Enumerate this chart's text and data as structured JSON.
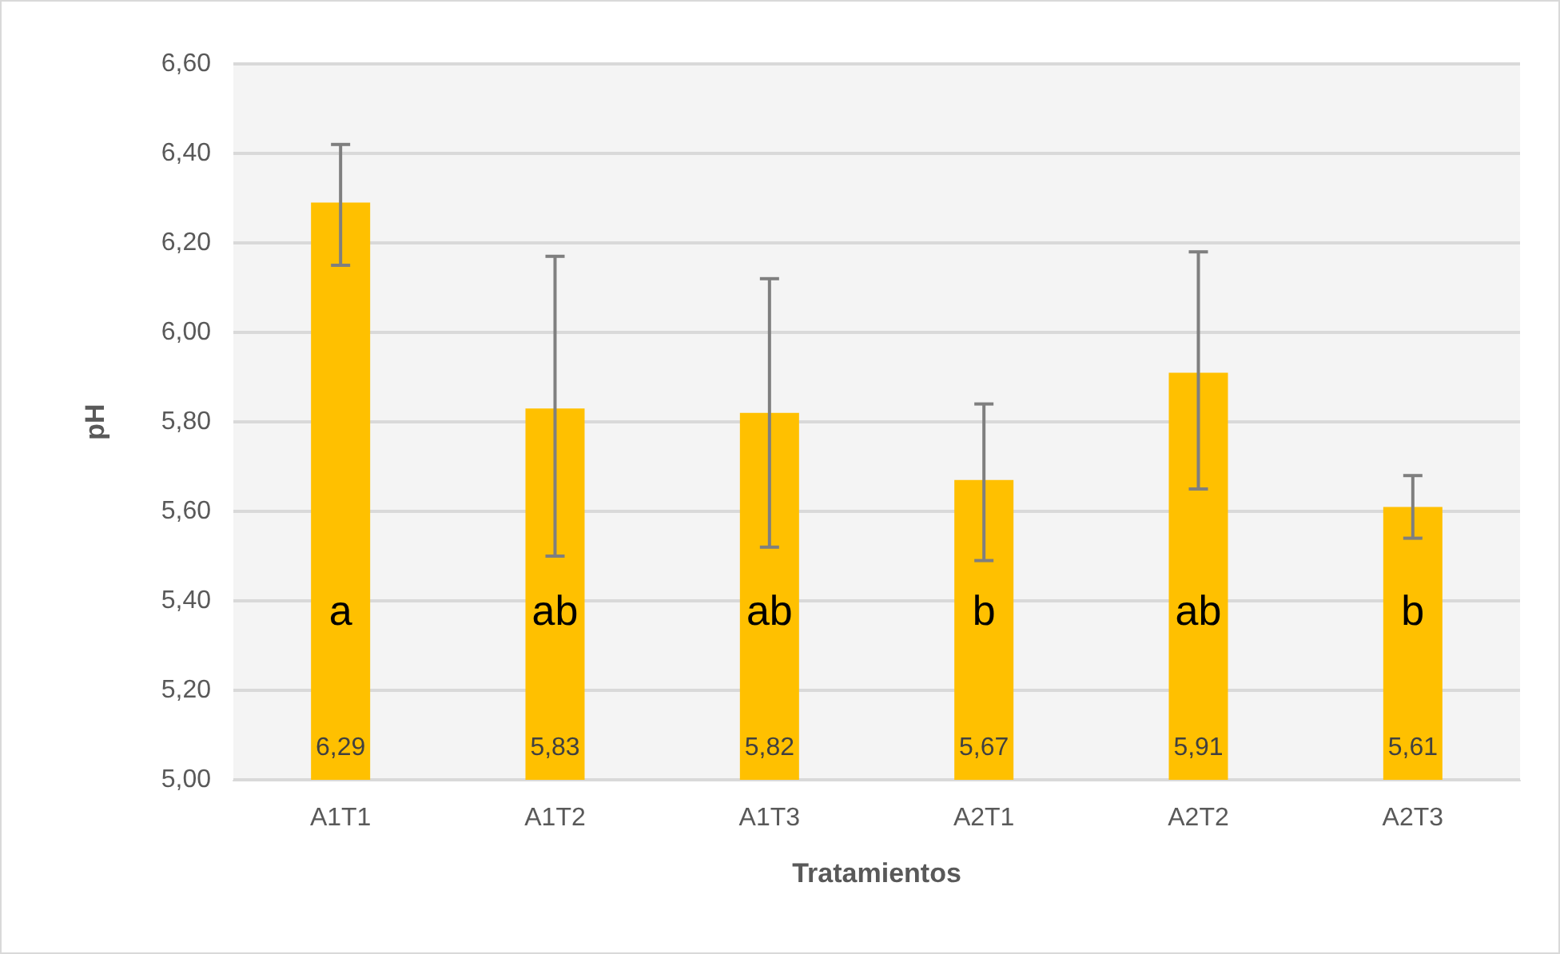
{
  "chart_data": {
    "type": "bar",
    "xlabel": "Tratamientos",
    "ylabel": "pH",
    "categories": [
      "A1T1",
      "A1T2",
      "A1T3",
      "A2T1",
      "A2T2",
      "A2T3"
    ],
    "series": [
      {
        "color": "#ffc000",
        "values": [
          6.29,
          5.83,
          5.82,
          5.67,
          5.91,
          5.61
        ],
        "value_labels": [
          "6,29",
          "5,83",
          "5,82",
          "5,67",
          "5,91",
          "5,61"
        ],
        "errors": [
          [
            6.15,
            6.42
          ],
          [
            5.5,
            6.17
          ],
          [
            5.52,
            6.12
          ],
          [
            5.49,
            5.84
          ],
          [
            5.65,
            6.18
          ],
          [
            5.54,
            5.68
          ]
        ]
      }
    ],
    "ylim": [
      5.0,
      6.6
    ],
    "yticks": [
      {
        "value": 5.0,
        "label": "5,00"
      },
      {
        "value": 5.2,
        "label": "5,20"
      },
      {
        "value": 5.4,
        "label": "5,40"
      },
      {
        "value": 5.6,
        "label": "5,60"
      },
      {
        "value": 5.8,
        "label": "5,80"
      },
      {
        "value": 6.0,
        "label": "6,00"
      },
      {
        "value": 6.2,
        "label": "6,20"
      },
      {
        "value": 6.4,
        "label": "6,40"
      },
      {
        "value": 6.6,
        "label": "6,60"
      }
    ],
    "grid": "y",
    "annotations": [
      "a",
      "ab",
      "ab",
      "b",
      "ab",
      "b"
    ]
  }
}
